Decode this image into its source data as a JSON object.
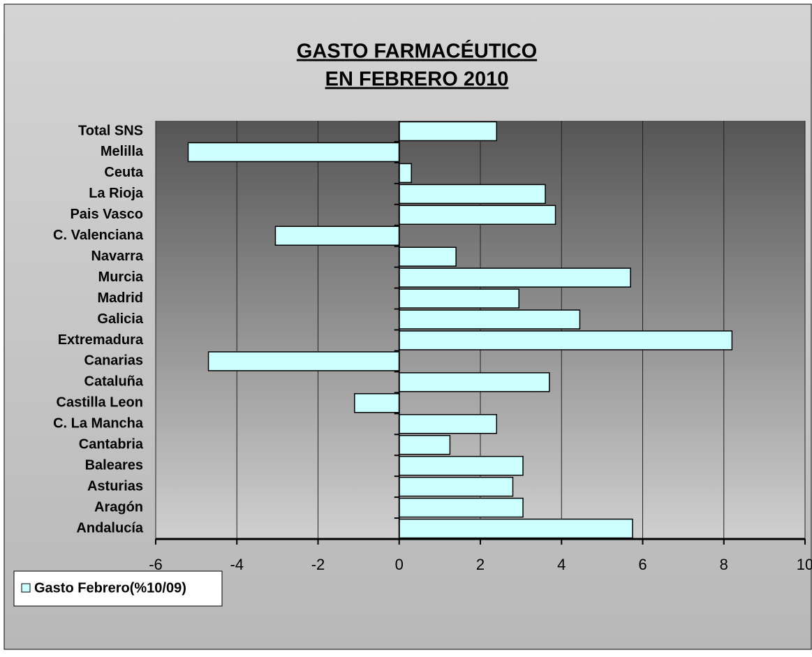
{
  "chart_data": {
    "type": "hbar",
    "title": [
      "GASTO FARMACÉUTICO",
      "EN FEBRERO 2010"
    ],
    "categories": [
      "Total SNS",
      "Melilla",
      "Ceuta",
      "La Rioja",
      "Pais Vasco",
      "C. Valenciana",
      "Navarra",
      "Murcia",
      "Madrid",
      "Galicia",
      "Extremadura",
      "Canarias",
      "Cataluña",
      "Castilla Leon",
      "C. La Mancha",
      "Cantabria",
      "Baleares",
      "Asturias",
      "Aragón",
      "Andalucía"
    ],
    "series": [
      {
        "name": "Gasto Febrero(%10/09)",
        "color": "#ccffff",
        "values": [
          2.4,
          -5.2,
          0.3,
          3.6,
          3.85,
          -3.05,
          1.4,
          5.7,
          2.95,
          4.45,
          8.2,
          -4.7,
          3.7,
          -1.1,
          2.4,
          1.25,
          3.05,
          2.8,
          3.05,
          5.75
        ]
      }
    ],
    "xlim": [
      -6,
      10
    ],
    "xticks": [
      -6,
      -4,
      -2,
      0,
      2,
      4,
      6,
      8,
      10
    ],
    "grid": true,
    "legend": "bottom-left"
  }
}
